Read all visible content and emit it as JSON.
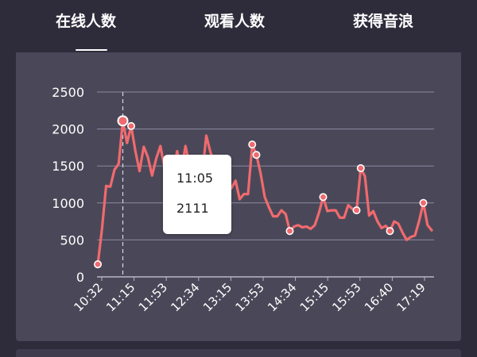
{
  "tabs": [
    {
      "label": "在线人数",
      "active": true
    },
    {
      "label": "观看人数",
      "active": false
    },
    {
      "label": "获得音浪",
      "active": false
    }
  ],
  "tooltip": {
    "time": "11:05",
    "value": "2111"
  },
  "colors": {
    "background": "#2e2c3b",
    "card": "#4a4858",
    "line": "#f06a6e",
    "grid": "#8a88a0",
    "text": "#ffffff"
  },
  "chart_data": {
    "type": "line",
    "title": "",
    "xlabel": "",
    "ylabel": "",
    "ylim": [
      0,
      2500
    ],
    "yticks": [
      0,
      500,
      1000,
      1500,
      2000,
      2500
    ],
    "xticks": [
      "10:32",
      "11:15",
      "11:53",
      "12:34",
      "13:15",
      "13:53",
      "14:34",
      "15:15",
      "15:53",
      "16:40",
      "17:19"
    ],
    "grid": true,
    "highlight": {
      "x": "11:05",
      "y": 2111
    },
    "series": [
      {
        "values": [
          170,
          650,
          1230,
          1220,
          1450,
          1530,
          2110,
          1810,
          2040,
          1700,
          1430,
          1760,
          1620,
          1370,
          1600,
          1770,
          1470,
          1480,
          1380,
          1700,
          1420,
          1770,
          1500,
          1600,
          1550,
          1380,
          1910,
          1680,
          1550,
          1410,
          1390,
          1300,
          1200,
          1300,
          1050,
          1120,
          1120,
          1790,
          1650,
          1400,
          1080,
          940,
          820,
          820,
          900,
          850,
          620,
          680,
          700,
          670,
          680,
          650,
          700,
          870,
          1080,
          890,
          900,
          900,
          800,
          800,
          970,
          920,
          900,
          1470,
          1360,
          830,
          890,
          750,
          660,
          690,
          620,
          750,
          720,
          600,
          500,
          540,
          560,
          760,
          1000,
          700,
          630
        ],
        "markers": [
          0,
          6,
          8,
          37,
          38,
          46,
          54,
          62,
          63,
          70,
          78
        ]
      }
    ]
  }
}
